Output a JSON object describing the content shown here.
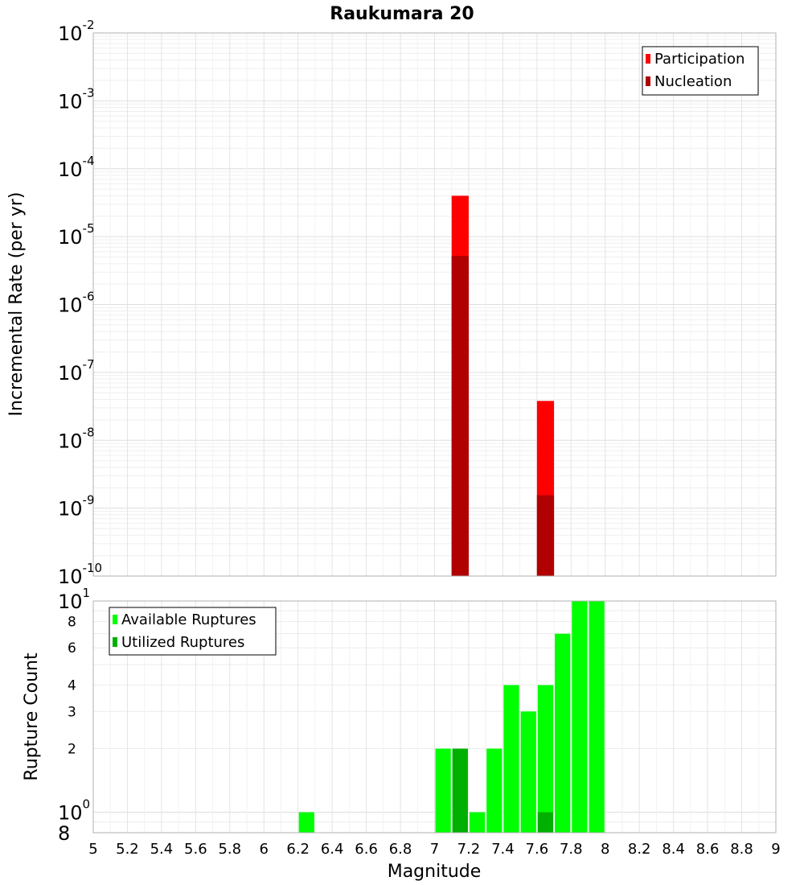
{
  "chart_data": [
    {
      "type": "bar",
      "title": "Raukumara 20",
      "ylabel": "Incremental Rate (per yr)",
      "xlabel": "",
      "y_scale": "log",
      "ylim": [
        1e-10,
        0.01
      ],
      "xlim": [
        5,
        9
      ],
      "grid": true,
      "legend_position": "top-right",
      "y_tick_labels": [
        {
          "base": "10",
          "exp": "-10"
        },
        {
          "base": "10",
          "exp": "-9"
        },
        {
          "base": "10",
          "exp": "-8"
        },
        {
          "base": "10",
          "exp": "-7"
        },
        {
          "base": "10",
          "exp": "-6"
        },
        {
          "base": "10",
          "exp": "-5"
        },
        {
          "base": "10",
          "exp": "-4"
        },
        {
          "base": "10",
          "exp": "-3"
        },
        {
          "base": "10",
          "exp": "-2"
        }
      ],
      "series": [
        {
          "name": "Participation",
          "color": "#ff0000",
          "x": [
            7.15,
            7.65
          ],
          "values": [
            4e-05,
            3.8e-08
          ]
        },
        {
          "name": "Nucleation",
          "color": "#b00000",
          "x": [
            7.15,
            7.65
          ],
          "values": [
            5.2e-06,
            1.55e-09
          ]
        }
      ]
    },
    {
      "type": "bar",
      "title": "",
      "ylabel": "Rupture Count",
      "xlabel": "Magnitude",
      "y_scale": "log",
      "ylim": [
        0.8,
        10
      ],
      "xlim": [
        5,
        9
      ],
      "grid": true,
      "legend_position": "top-left",
      "x_tick_labels": [
        "5",
        "5.2",
        "5.4",
        "5.6",
        "5.8",
        "6",
        "6.2",
        "6.4",
        "6.6",
        "6.8",
        "7",
        "7.2",
        "7.4",
        "7.6",
        "7.8",
        "8",
        "8.2",
        "8.4",
        "8.6",
        "8.8",
        "9"
      ],
      "y_tick_labels": [
        {
          "value": 0.8,
          "base": "8",
          "exp": ""
        },
        {
          "value": 1,
          "base": "10",
          "exp": "0"
        },
        {
          "value": 2,
          "base": "2",
          "exp": ""
        },
        {
          "value": 3,
          "base": "3",
          "exp": ""
        },
        {
          "value": 4,
          "base": "4",
          "exp": ""
        },
        {
          "value": 6,
          "base": "6",
          "exp": ""
        },
        {
          "value": 8,
          "base": "8",
          "exp": ""
        },
        {
          "value": 10,
          "base": "10",
          "exp": "1"
        }
      ],
      "series": [
        {
          "name": "Available Ruptures",
          "color": "#00ff00",
          "x": [
            6.25,
            7.05,
            7.15,
            7.25,
            7.35,
            7.45,
            7.55,
            7.65,
            7.75,
            7.85,
            7.95
          ],
          "values": [
            1,
            2,
            2,
            1,
            2,
            4,
            3,
            4,
            7,
            10,
            10
          ]
        },
        {
          "name": "Utilized Ruptures",
          "color": "#00b000",
          "x": [
            7.15,
            7.65
          ],
          "values": [
            2,
            1
          ]
        }
      ]
    }
  ]
}
